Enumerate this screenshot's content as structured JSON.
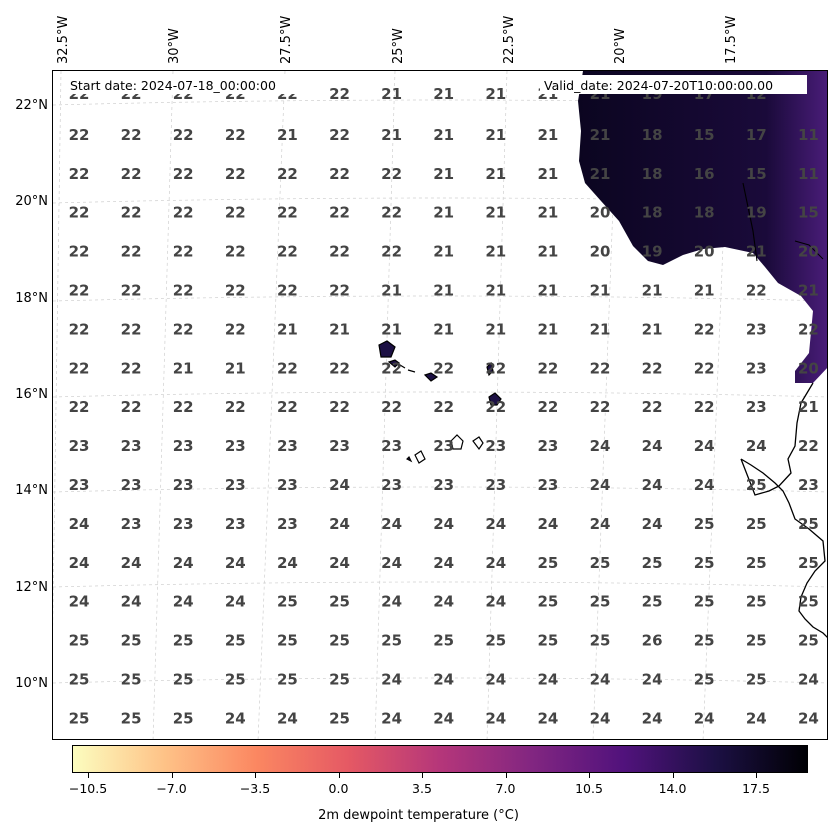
{
  "map": {
    "start_label": "Start date: 2024-07-18_00:00:00",
    "valid_label": "Valid_date: 2024-07-20T10:00:00.00",
    "lon_ticks": [
      "32.5°W",
      "30°W",
      "27.5°W",
      "25°W",
      "22.5°W",
      "20°W",
      "17.5°W"
    ],
    "lat_ticks": [
      "22°N",
      "20°N",
      "18°N",
      "16°N",
      "14°N",
      "12°N",
      "10°N"
    ],
    "value_color": "#444444",
    "land_color": "#0b0520",
    "grid_values": [
      [
        "22",
        "22",
        "22",
        "22",
        "22",
        "22",
        "21",
        "21",
        "21",
        "21",
        "21",
        "19",
        "17",
        "12"
      ],
      [
        "22",
        "22",
        "22",
        "22",
        "21",
        "22",
        "21",
        "21",
        "21",
        "21",
        "21",
        "18",
        "15",
        "17",
        "11"
      ],
      [
        "22",
        "22",
        "22",
        "22",
        "22",
        "22",
        "22",
        "21",
        "21",
        "21",
        "21",
        "18",
        "16",
        "15",
        "11"
      ],
      [
        "22",
        "22",
        "22",
        "22",
        "22",
        "22",
        "22",
        "21",
        "21",
        "21",
        "20",
        "18",
        "18",
        "19",
        "15"
      ],
      [
        "22",
        "22",
        "22",
        "22",
        "22",
        "22",
        "22",
        "21",
        "21",
        "21",
        "20",
        "19",
        "20",
        "21",
        "20"
      ],
      [
        "22",
        "22",
        "22",
        "22",
        "22",
        "22",
        "21",
        "21",
        "21",
        "21",
        "21",
        "21",
        "21",
        "22",
        "21"
      ],
      [
        "22",
        "22",
        "22",
        "22",
        "21",
        "21",
        "21",
        "21",
        "21",
        "21",
        "21",
        "21",
        "22",
        "23",
        "22"
      ],
      [
        "22",
        "22",
        "21",
        "21",
        "22",
        "22",
        "22",
        "22",
        "22",
        "22",
        "22",
        "22",
        "22",
        "23",
        "20"
      ],
      [
        "22",
        "22",
        "22",
        "22",
        "22",
        "22",
        "22",
        "22",
        "22",
        "22",
        "22",
        "22",
        "22",
        "23",
        "21"
      ],
      [
        "23",
        "23",
        "23",
        "23",
        "23",
        "23",
        "23",
        "23",
        "23",
        "23",
        "24",
        "24",
        "24",
        "24",
        "22"
      ],
      [
        "23",
        "23",
        "23",
        "23",
        "23",
        "24",
        "23",
        "23",
        "23",
        "23",
        "24",
        "24",
        "24",
        "25",
        "23"
      ],
      [
        "24",
        "23",
        "23",
        "23",
        "23",
        "24",
        "24",
        "24",
        "24",
        "24",
        "24",
        "24",
        "25",
        "25",
        "25"
      ],
      [
        "24",
        "24",
        "24",
        "24",
        "24",
        "24",
        "24",
        "24",
        "24",
        "25",
        "25",
        "25",
        "25",
        "25",
        "25"
      ],
      [
        "24",
        "24",
        "24",
        "24",
        "25",
        "25",
        "24",
        "24",
        "24",
        "25",
        "25",
        "25",
        "25",
        "25",
        "25"
      ],
      [
        "25",
        "25",
        "25",
        "25",
        "25",
        "25",
        "25",
        "25",
        "25",
        "25",
        "25",
        "26",
        "25",
        "25",
        "25"
      ],
      [
        "25",
        "25",
        "25",
        "25",
        "25",
        "25",
        "24",
        "24",
        "24",
        "24",
        "24",
        "24",
        "25",
        "25",
        "24"
      ],
      [
        "25",
        "25",
        "25",
        "24",
        "24",
        "25",
        "24",
        "24",
        "24",
        "24",
        "24",
        "24",
        "24",
        "24",
        "24"
      ]
    ]
  },
  "colorbar": {
    "title": "2m dewpoint temperature (°C)",
    "ticks": [
      "−10.5",
      "−7.0",
      "−3.5",
      "0.0",
      "3.5",
      "7.0",
      "10.5",
      "14.0",
      "17.5"
    ],
    "colors": [
      "#fcfdbf",
      "#fec287",
      "#fb8761",
      "#e55964",
      "#b5367a",
      "#822681",
      "#51127c",
      "#1c1044",
      "#000004"
    ]
  }
}
